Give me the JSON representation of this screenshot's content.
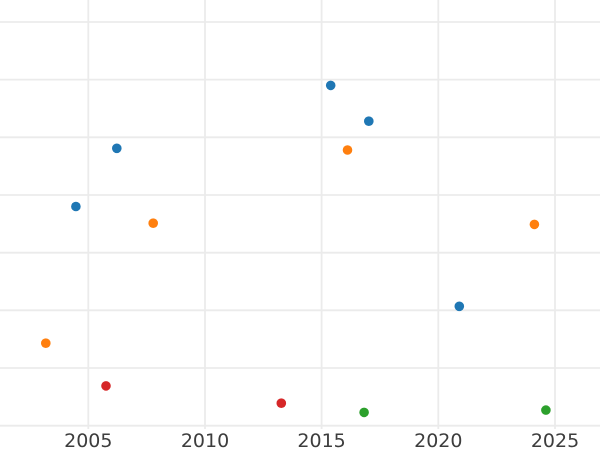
{
  "figure": {
    "background_color": "#ffffff",
    "grid_color": "#ebebeb",
    "grid_line_width": 1.8,
    "tick_label_color": "#3d3d3d",
    "tick_font_size": 19
  },
  "chart_data": {
    "type": "scatter",
    "title": "",
    "xlabel": "",
    "ylabel": "",
    "grid": true,
    "legend_visible": false,
    "y_tick_labels_visible": false,
    "x_range": [
      2001.215,
      2026.93
    ],
    "y_range": [
      -0.075,
      7.381
    ],
    "x_ticks": [
      {
        "value": 2005,
        "label": "2005"
      },
      {
        "value": 2010,
        "label": "2010"
      },
      {
        "value": 2015,
        "label": "2015"
      },
      {
        "value": 2020,
        "label": "2020"
      },
      {
        "value": 2025,
        "label": "2025"
      }
    ],
    "y_gridlines": [
      0,
      1,
      2,
      3,
      4,
      5,
      6,
      7
    ],
    "marker_radius": 4.8,
    "series": [
      {
        "name": "blue",
        "color": "#1f77b4",
        "points": [
          {
            "x": 2006.22,
            "y": 4.81
          },
          {
            "x": 2004.47,
            "y": 3.8
          },
          {
            "x": 2015.39,
            "y": 5.9
          },
          {
            "x": 2017.02,
            "y": 5.28
          },
          {
            "x": 2020.9,
            "y": 2.07
          }
        ]
      },
      {
        "name": "orange",
        "color": "#ff7f0e",
        "points": [
          {
            "x": 2007.78,
            "y": 3.51
          },
          {
            "x": 2016.11,
            "y": 4.78
          },
          {
            "x": 2024.12,
            "y": 3.49
          },
          {
            "x": 2003.18,
            "y": 1.43
          }
        ]
      },
      {
        "name": "red",
        "color": "#d62728",
        "points": [
          {
            "x": 2005.76,
            "y": 0.69
          },
          {
            "x": 2013.27,
            "y": 0.39
          }
        ]
      },
      {
        "name": "green",
        "color": "#2ca02c",
        "points": [
          {
            "x": 2016.82,
            "y": 0.23
          },
          {
            "x": 2024.61,
            "y": 0.27
          }
        ]
      }
    ]
  }
}
